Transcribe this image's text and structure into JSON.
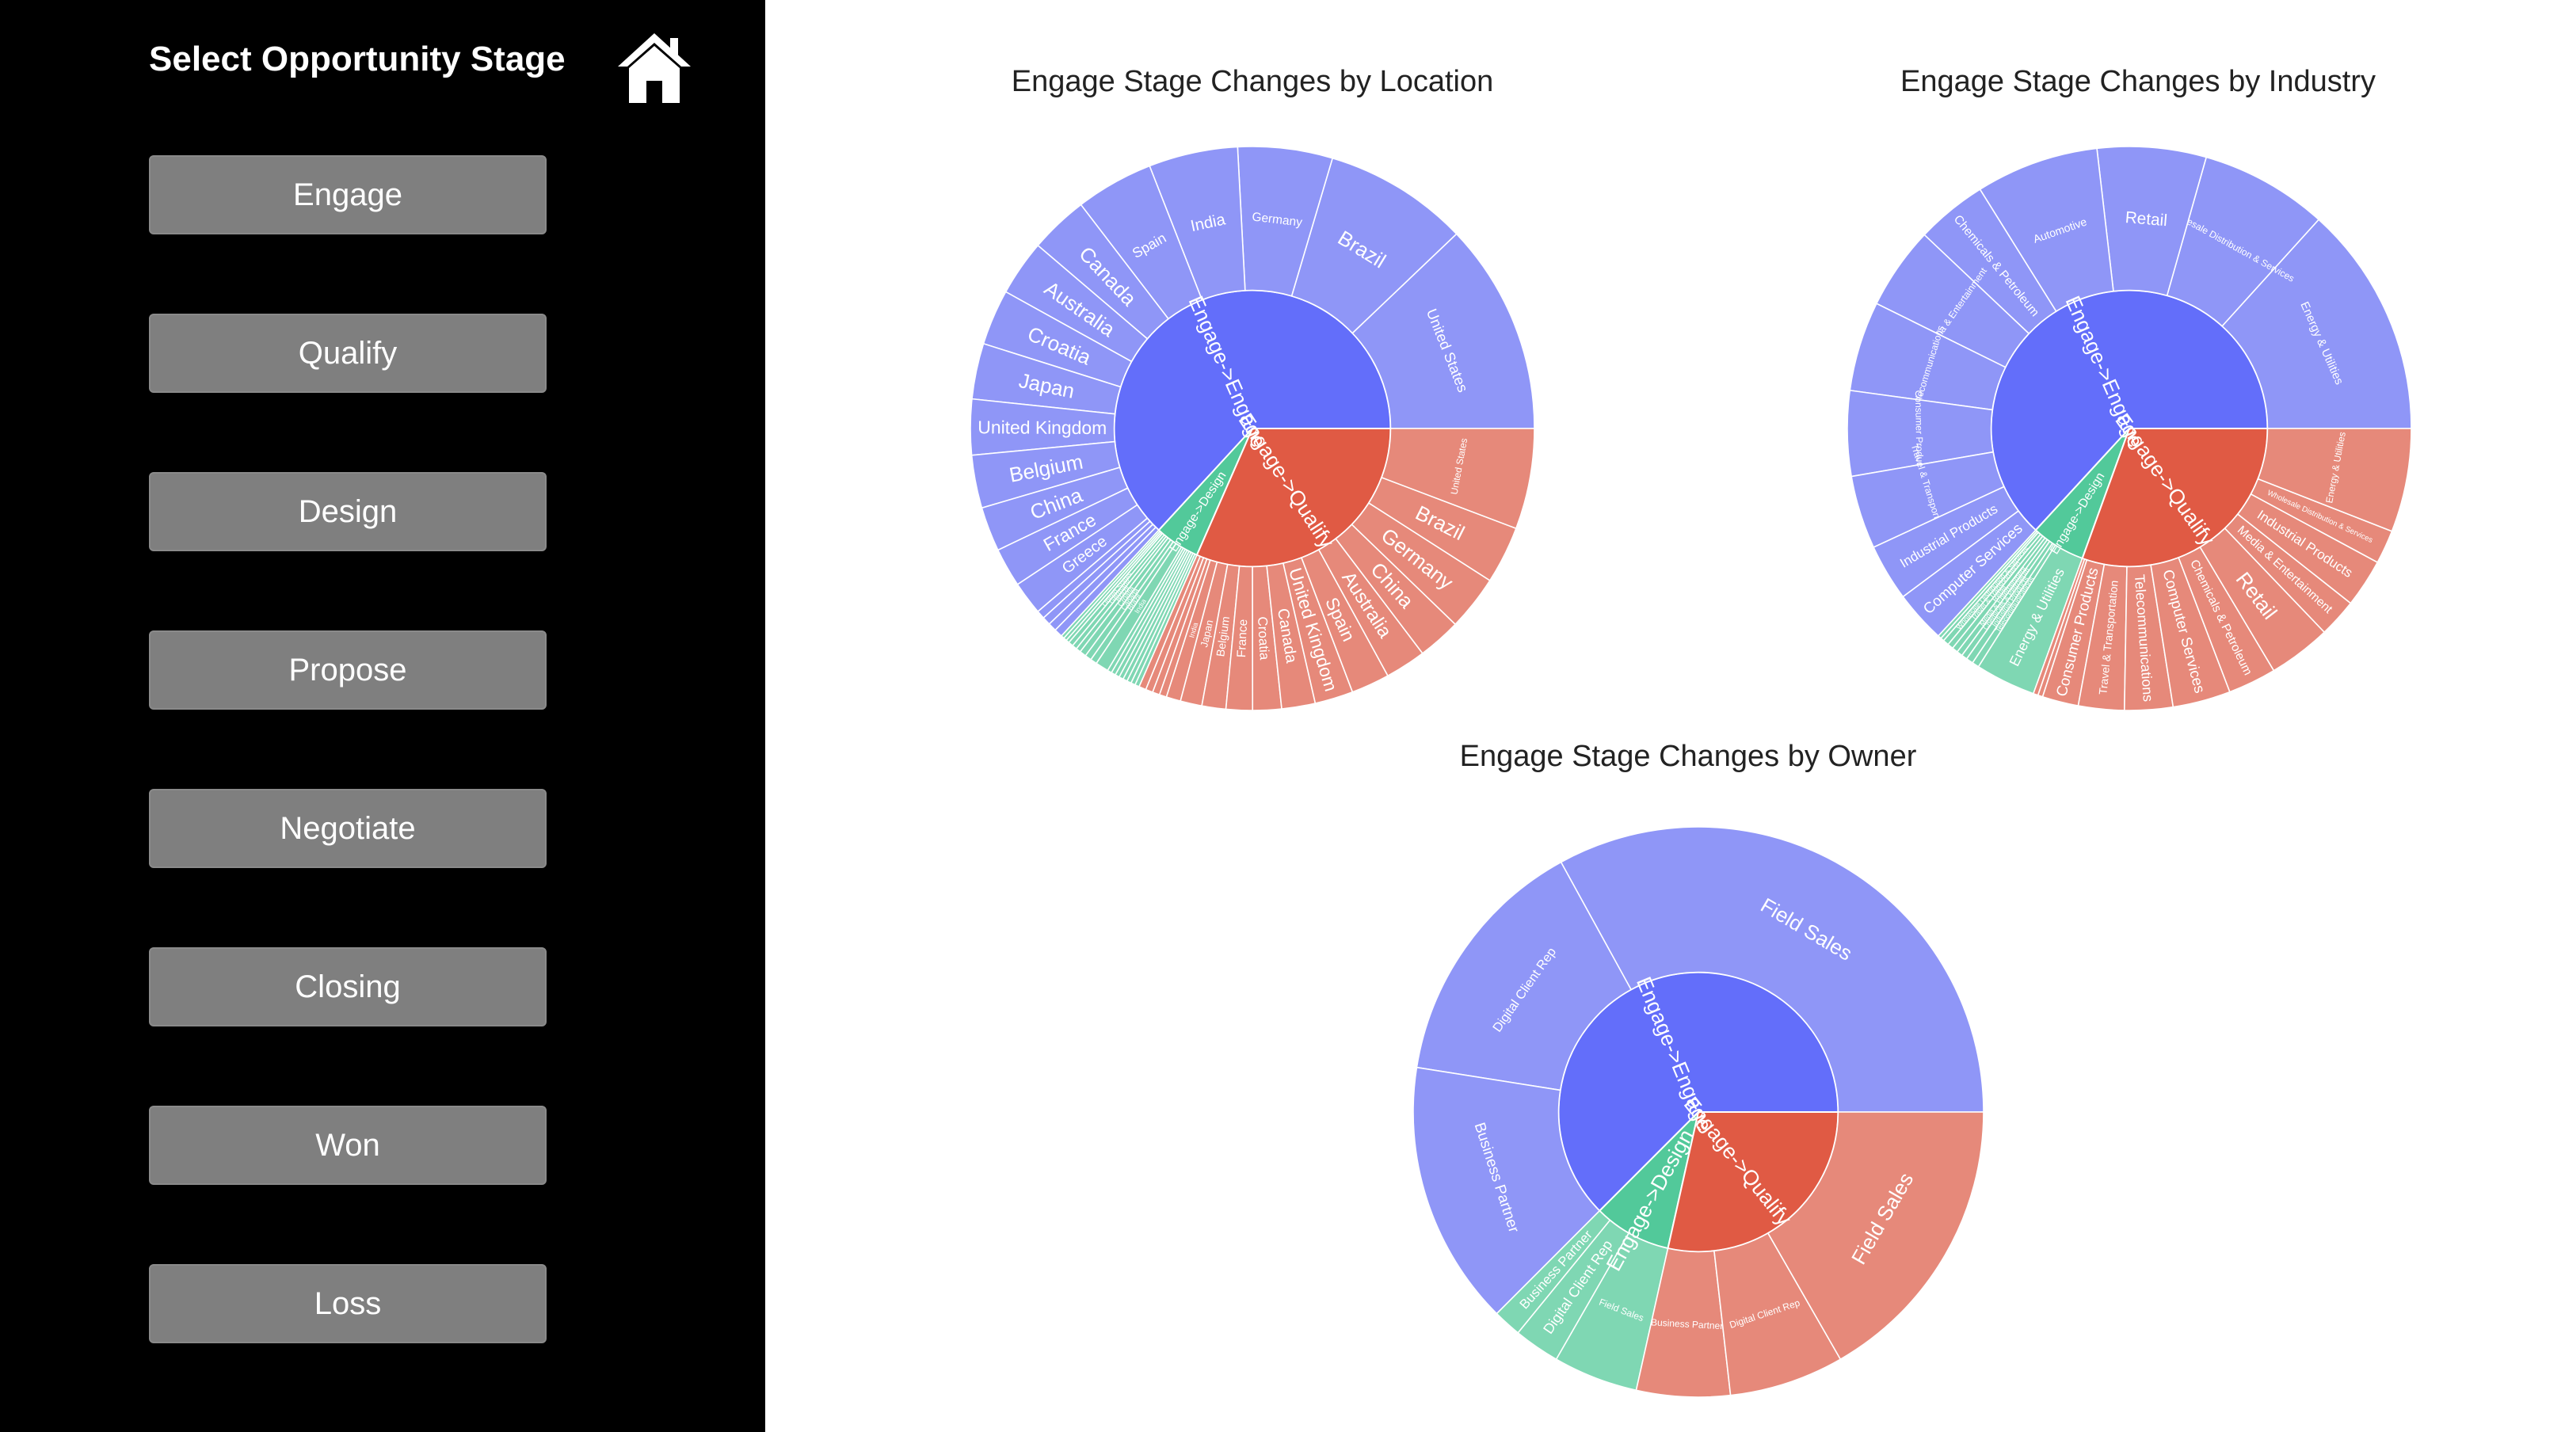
{
  "sidebar": {
    "title": "Select Opportunity Stage",
    "home_icon": "home-icon",
    "buttons": [
      "Engage",
      "Qualify",
      "Design",
      "Propose",
      "Negotiate",
      "Closing",
      "Won",
      "Loss"
    ]
  },
  "colors": {
    "engage": "#636efa",
    "engage_outer": "#8f96f7",
    "qualify": "#e05a44",
    "qualify_outer": "#e6897a",
    "design": "#52c99a",
    "design_outer": "#7fd7b3",
    "sidebar_bg": "#000000",
    "button_bg": "#7f7f7f"
  },
  "chart_data": [
    {
      "type": "sunburst",
      "title": "Engage Stage Changes by Location",
      "inner": [
        {
          "label": "Engage->Engage",
          "value": 60,
          "color_key": "engage"
        },
        {
          "label": "Engage->Design",
          "value": 5,
          "color_key": "design"
        },
        {
          "label": "Engage->Qualify",
          "value": 30,
          "color_key": "qualify"
        }
      ],
      "outer": [
        {
          "parent": "Engage->Engage",
          "children": [
            [
              "United States",
              7.6
            ],
            [
              "Brazil",
              5.2
            ],
            [
              "Germany",
              3.4
            ],
            [
              "India",
              3.2
            ],
            [
              "Spain",
              2.8
            ],
            [
              "Canada",
              2.1
            ],
            [
              "Australia",
              2.0
            ],
            [
              "Croatia",
              2.0
            ],
            [
              "Japan",
              2.0
            ],
            [
              "United Kingdom",
              2.0
            ],
            [
              "Belgium",
              1.9
            ],
            [
              "China",
              1.6
            ],
            [
              "France",
              1.4
            ],
            [
              "Greece",
              1.2
            ],
            [
              "",
              0.3
            ],
            [
              "",
              0.3
            ],
            [
              "",
              0.3
            ],
            [
              "",
              0.3
            ]
          ]
        },
        {
          "parent": "Engage->Design",
          "children": [
            [
              "",
              0.15
            ],
            [
              "",
              0.15
            ],
            [
              "",
              0.15
            ],
            [
              "United States",
              0.22
            ],
            [
              "Germany",
              0.22
            ],
            [
              "Brazil",
              0.22
            ],
            [
              "Croatia",
              0.3
            ],
            [
              "Canada",
              0.3
            ],
            [
              "Brazil",
              0.3
            ],
            [
              "India",
              0.6
            ],
            [
              "",
              0.2
            ],
            [
              "",
              0.2
            ],
            [
              "",
              0.2
            ],
            [
              "",
              0.2
            ],
            [
              "",
              0.2
            ],
            [
              "",
              0.2
            ],
            [
              "",
              0.2
            ],
            [
              "",
              0.2
            ]
          ]
        },
        {
          "parent": "Engage->Qualify",
          "children": [
            [
              "",
              0.3
            ],
            [
              "",
              0.3
            ],
            [
              "",
              0.3
            ],
            [
              "",
              0.3
            ],
            [
              "India",
              0.6
            ],
            [
              "Japan",
              0.9
            ],
            [
              "Belgium",
              1.0
            ],
            [
              "France",
              1.1
            ],
            [
              "Croatia",
              1.2
            ],
            [
              "Canada",
              1.4
            ],
            [
              "United Kingdom",
              1.6
            ],
            [
              "Spain",
              1.6
            ],
            [
              "Australia",
              1.7
            ],
            [
              "China",
              1.8
            ],
            [
              "Germany",
              2.3
            ],
            [
              "Brazil",
              2.4
            ],
            [
              "United States",
              4.2
            ]
          ]
        }
      ]
    },
    {
      "type": "sunburst",
      "title": "Engage Stage Changes by Industry",
      "inner": [
        {
          "label": "Engage->Engage",
          "value": 60,
          "color_key": "engage"
        },
        {
          "label": "Engage->Design",
          "value": 6,
          "color_key": "design"
        },
        {
          "label": "Engage->Qualify",
          "value": 29,
          "color_key": "qualify"
        }
      ],
      "outer": [
        {
          "parent": "Engage->Engage",
          "children": [
            [
              "Energy & Utilities",
              9.8
            ],
            [
              "Wholesale Distribution & Services",
              5.4
            ],
            [
              "Retail",
              4.6
            ],
            [
              "Automotive",
              5.2
            ],
            [
              "Chemicals & Petroleum",
              3.0
            ],
            [
              "Media & Entertainment",
              3.5
            ],
            [
              "Telecommunications",
              3.8
            ],
            [
              "Consumer Products",
              3.6
            ],
            [
              "Travel & Transportation",
              3.1
            ],
            [
              "Industrial Products",
              2.4
            ],
            [
              "Computer Services",
              2.2
            ]
          ]
        },
        {
          "parent": "Engage->Design",
          "children": [
            [
              "",
              0.15
            ],
            [
              "",
              0.15
            ],
            [
              "Wholesale Distribution & Services",
              0.25
            ],
            [
              "Travel & Transportation",
              0.25
            ],
            [
              "Retail",
              0.25
            ],
            [
              "Media & Entertainment",
              0.25
            ],
            [
              "Chemicals & Petroleum",
              0.25
            ],
            [
              "Industrial Products",
              0.3
            ],
            [
              "Telecommunications",
              0.3
            ],
            [
              "Energy & Utilities",
              2.6
            ]
          ]
        },
        {
          "parent": "Engage->Qualify",
          "children": [
            [
              "",
              0.2
            ],
            [
              "",
              0.2
            ],
            [
              "Consumer Products",
              1.5
            ],
            [
              "Travel & Transportation",
              1.9
            ],
            [
              "Telecommunications",
              2.0
            ],
            [
              "Computer Services",
              2.4
            ],
            [
              "Chemicals & Petroleum",
              2.0
            ],
            [
              "Retail",
              2.6
            ],
            [
              "Media & Entertainment",
              1.6
            ],
            [
              "Industrial Products",
              2.0
            ],
            [
              "Wholesale Distribution & Services",
              1.4
            ],
            [
              "Energy & Utilities",
              4.3
            ]
          ]
        }
      ]
    },
    {
      "type": "sunburst",
      "title": "Engage Stage Changes by Owner",
      "inner": [
        {
          "label": "Engage->Engage",
          "value": 62.5,
          "color_key": "engage"
        },
        {
          "label": "Engage->Design",
          "value": 9,
          "color_key": "design"
        },
        {
          "label": "Engage->Qualify",
          "value": 28.5,
          "color_key": "qualify"
        }
      ],
      "outer": [
        {
          "parent": "Engage->Engage",
          "children": [
            [
              "Field Sales",
              33
            ],
            [
              "Digital Client Rep",
              14.5
            ],
            [
              "Business Partner",
              15
            ]
          ]
        },
        {
          "parent": "Engage->Design",
          "children": [
            [
              "Business Partner",
              1.6
            ],
            [
              "Digital Client Rep",
              2.6
            ],
            [
              "Field Sales",
              4.8
            ]
          ]
        },
        {
          "parent": "Engage->Qualify",
          "children": [
            [
              "Business Partner",
              5.3
            ],
            [
              "Digital Client Rep",
              6.5
            ],
            [
              "Field Sales",
              16.7
            ]
          ]
        }
      ]
    }
  ]
}
